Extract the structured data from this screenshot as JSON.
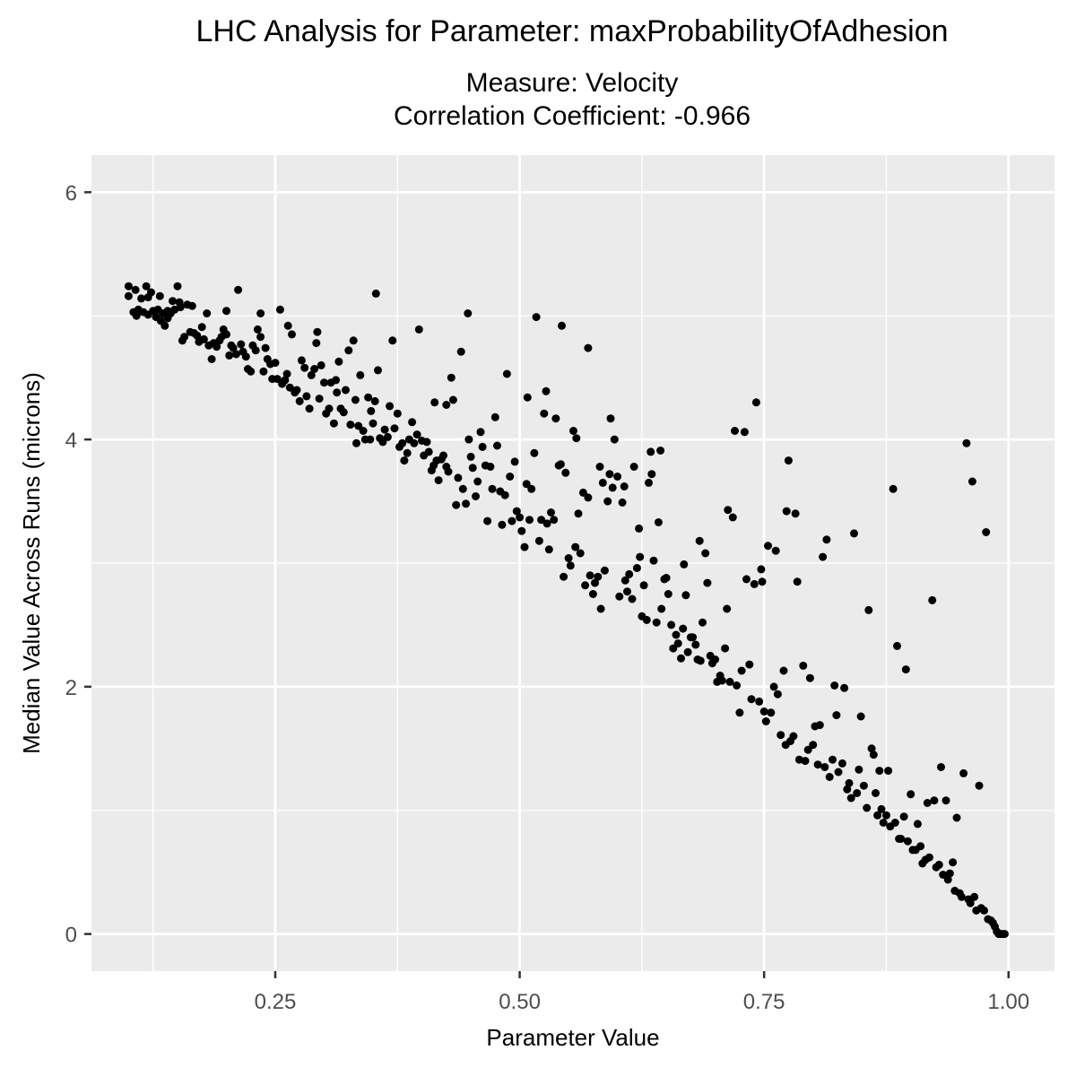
{
  "chart_data": {
    "type": "scatter",
    "title": "LHC Analysis for Parameter: maxProbabilityOfAdhesion",
    "subtitle_lines": [
      "Measure: Velocity",
      "Correlation Coefficient: -0.966"
    ],
    "xlabel": "Parameter Value",
    "ylabel": "Median Value Across Runs (microns)",
    "xlim": [
      0.062,
      1.047
    ],
    "ylim": [
      -0.3,
      6.3
    ],
    "xticks": [
      0.25,
      0.5,
      0.75,
      1.0
    ],
    "xtick_labels": [
      "0.25",
      "0.50",
      "0.75",
      "1.00"
    ],
    "yticks": [
      0,
      2,
      4,
      6
    ],
    "ytick_labels": [
      "0",
      "2",
      "4",
      "6"
    ],
    "grid": true,
    "background": "#ebebeb",
    "point_color": "#000000",
    "points": [
      [
        0.1,
        5.16
      ],
      [
        0.1,
        5.24
      ],
      [
        0.105,
        5.03
      ],
      [
        0.107,
        5.21
      ],
      [
        0.108,
        5.0
      ],
      [
        0.11,
        5.05
      ],
      [
        0.113,
        5.14
      ],
      [
        0.115,
        5.03
      ],
      [
        0.118,
        5.24
      ],
      [
        0.12,
        5.01
      ],
      [
        0.12,
        5.15
      ],
      [
        0.123,
        5.19
      ],
      [
        0.125,
        5.04
      ],
      [
        0.128,
        4.99
      ],
      [
        0.13,
        5.05
      ],
      [
        0.132,
        5.16
      ],
      [
        0.133,
        4.96
      ],
      [
        0.135,
        5.02
      ],
      [
        0.137,
        4.92
      ],
      [
        0.14,
        4.98
      ],
      [
        0.14,
        5.04
      ],
      [
        0.143,
        5.02
      ],
      [
        0.145,
        5.12
      ],
      [
        0.147,
        5.05
      ],
      [
        0.15,
        5.24
      ],
      [
        0.152,
        5.11
      ],
      [
        0.153,
        5.07
      ],
      [
        0.155,
        4.8
      ],
      [
        0.157,
        4.83
      ],
      [
        0.16,
        5.09
      ],
      [
        0.163,
        4.87
      ],
      [
        0.165,
        5.08
      ],
      [
        0.167,
        4.86
      ],
      [
        0.17,
        4.84
      ],
      [
        0.172,
        4.79
      ],
      [
        0.175,
        4.91
      ],
      [
        0.177,
        4.81
      ],
      [
        0.18,
        5.02
      ],
      [
        0.182,
        4.76
      ],
      [
        0.185,
        4.65
      ],
      [
        0.187,
        4.78
      ],
      [
        0.19,
        4.75
      ],
      [
        0.193,
        4.8
      ],
      [
        0.195,
        4.83
      ],
      [
        0.197,
        4.89
      ],
      [
        0.2,
        4.85
      ],
      [
        0.2,
        5.04
      ],
      [
        0.203,
        4.68
      ],
      [
        0.205,
        4.76
      ],
      [
        0.207,
        4.74
      ],
      [
        0.21,
        4.69
      ],
      [
        0.212,
        5.21
      ],
      [
        0.215,
        4.77
      ],
      [
        0.217,
        4.71
      ],
      [
        0.22,
        4.67
      ],
      [
        0.222,
        4.57
      ],
      [
        0.225,
        4.55
      ],
      [
        0.227,
        4.76
      ],
      [
        0.23,
        4.72
      ],
      [
        0.232,
        4.89
      ],
      [
        0.235,
        4.83
      ],
      [
        0.235,
        5.02
      ],
      [
        0.238,
        4.55
      ],
      [
        0.24,
        4.74
      ],
      [
        0.242,
        4.65
      ],
      [
        0.245,
        4.61
      ],
      [
        0.247,
        4.49
      ],
      [
        0.25,
        4.62
      ],
      [
        0.252,
        4.49
      ],
      [
        0.255,
        5.05
      ],
      [
        0.257,
        4.45
      ],
      [
        0.26,
        4.48
      ],
      [
        0.262,
        4.53
      ],
      [
        0.263,
        4.92
      ],
      [
        0.265,
        4.42
      ],
      [
        0.267,
        4.85
      ],
      [
        0.27,
        4.38
      ],
      [
        0.272,
        4.4
      ],
      [
        0.275,
        4.31
      ],
      [
        0.277,
        4.64
      ],
      [
        0.28,
        4.58
      ],
      [
        0.282,
        4.35
      ],
      [
        0.285,
        4.25
      ],
      [
        0.287,
        4.52
      ],
      [
        0.29,
        4.57
      ],
      [
        0.292,
        4.78
      ],
      [
        0.293,
        4.87
      ],
      [
        0.295,
        4.33
      ],
      [
        0.297,
        4.6
      ],
      [
        0.3,
        4.46
      ],
      [
        0.302,
        4.21
      ],
      [
        0.305,
        4.25
      ],
      [
        0.307,
        4.46
      ],
      [
        0.31,
        4.13
      ],
      [
        0.312,
        4.48
      ],
      [
        0.313,
        4.38
      ],
      [
        0.315,
        4.63
      ],
      [
        0.317,
        4.25
      ],
      [
        0.32,
        4.22
      ],
      [
        0.322,
        4.4
      ],
      [
        0.325,
        4.72
      ],
      [
        0.327,
        4.12
      ],
      [
        0.33,
        4.8
      ],
      [
        0.332,
        4.32
      ],
      [
        0.333,
        3.97
      ],
      [
        0.335,
        4.11
      ],
      [
        0.337,
        4.52
      ],
      [
        0.34,
        4.07
      ],
      [
        0.342,
        4.0
      ],
      [
        0.345,
        4.34
      ],
      [
        0.347,
        4.0
      ],
      [
        0.348,
        4.23
      ],
      [
        0.35,
        4.13
      ],
      [
        0.352,
        4.31
      ],
      [
        0.353,
        5.18
      ],
      [
        0.355,
        4.56
      ],
      [
        0.357,
        4.01
      ],
      [
        0.36,
        3.98
      ],
      [
        0.362,
        4.08
      ],
      [
        0.365,
        4.02
      ],
      [
        0.367,
        4.27
      ],
      [
        0.37,
        4.8
      ],
      [
        0.372,
        4.09
      ],
      [
        0.375,
        4.21
      ],
      [
        0.377,
        3.94
      ],
      [
        0.38,
        3.97
      ],
      [
        0.382,
        3.83
      ],
      [
        0.385,
        3.89
      ],
      [
        0.387,
        4.0
      ],
      [
        0.39,
        4.14
      ],
      [
        0.392,
        3.97
      ],
      [
        0.395,
        4.04
      ],
      [
        0.397,
        4.89
      ],
      [
        0.4,
        3.99
      ],
      [
        0.402,
        3.87
      ],
      [
        0.405,
        3.98
      ],
      [
        0.407,
        3.9
      ],
      [
        0.41,
        3.75
      ],
      [
        0.412,
        3.79
      ],
      [
        0.413,
        4.3
      ],
      [
        0.415,
        3.83
      ],
      [
        0.417,
        3.67
      ],
      [
        0.42,
        3.84
      ],
      [
        0.422,
        3.87
      ],
      [
        0.425,
        3.78
      ],
      [
        0.425,
        4.28
      ],
      [
        0.427,
        3.74
      ],
      [
        0.43,
        4.5
      ],
      [
        0.432,
        4.32
      ],
      [
        0.435,
        3.47
      ],
      [
        0.437,
        3.69
      ],
      [
        0.44,
        4.71
      ],
      [
        0.442,
        3.6
      ],
      [
        0.445,
        3.48
      ],
      [
        0.447,
        5.02
      ],
      [
        0.448,
        4.0
      ],
      [
        0.45,
        3.86
      ],
      [
        0.452,
        3.77
      ],
      [
        0.455,
        3.54
      ],
      [
        0.457,
        3.66
      ],
      [
        0.46,
        4.06
      ],
      [
        0.462,
        3.94
      ],
      [
        0.465,
        3.79
      ],
      [
        0.467,
        3.34
      ],
      [
        0.47,
        3.78
      ],
      [
        0.472,
        3.6
      ],
      [
        0.475,
        4.18
      ],
      [
        0.477,
        3.95
      ],
      [
        0.48,
        3.58
      ],
      [
        0.482,
        3.31
      ],
      [
        0.485,
        3.55
      ],
      [
        0.487,
        4.53
      ],
      [
        0.49,
        3.7
      ],
      [
        0.492,
        3.34
      ],
      [
        0.495,
        3.82
      ],
      [
        0.497,
        3.42
      ],
      [
        0.5,
        3.37
      ],
      [
        0.502,
        3.26
      ],
      [
        0.505,
        3.13
      ],
      [
        0.507,
        3.64
      ],
      [
        0.508,
        4.34
      ],
      [
        0.51,
        3.35
      ],
      [
        0.512,
        3.6
      ],
      [
        0.515,
        3.89
      ],
      [
        0.517,
        4.99
      ],
      [
        0.52,
        3.18
      ],
      [
        0.522,
        3.35
      ],
      [
        0.525,
        4.21
      ],
      [
        0.527,
        4.39
      ],
      [
        0.528,
        3.32
      ],
      [
        0.53,
        3.11
      ],
      [
        0.532,
        3.41
      ],
      [
        0.535,
        3.35
      ],
      [
        0.537,
        4.17
      ],
      [
        0.54,
        3.79
      ],
      [
        0.542,
        3.8
      ],
      [
        0.543,
        4.92
      ],
      [
        0.545,
        2.89
      ],
      [
        0.547,
        3.73
      ],
      [
        0.55,
        3.04
      ],
      [
        0.552,
        2.98
      ],
      [
        0.555,
        4.07
      ],
      [
        0.557,
        3.13
      ],
      [
        0.558,
        4.01
      ],
      [
        0.56,
        3.4
      ],
      [
        0.562,
        3.08
      ],
      [
        0.565,
        3.57
      ],
      [
        0.567,
        2.82
      ],
      [
        0.57,
        3.53
      ],
      [
        0.57,
        4.74
      ],
      [
        0.572,
        2.9
      ],
      [
        0.575,
        2.75
      ],
      [
        0.577,
        2.84
      ],
      [
        0.58,
        2.89
      ],
      [
        0.582,
        3.78
      ],
      [
        0.583,
        2.63
      ],
      [
        0.585,
        3.65
      ],
      [
        0.587,
        2.94
      ],
      [
        0.59,
        3.5
      ],
      [
        0.592,
        3.72
      ],
      [
        0.593,
        4.17
      ],
      [
        0.595,
        3.61
      ],
      [
        0.597,
        4.0
      ],
      [
        0.6,
        3.7
      ],
      [
        0.602,
        2.73
      ],
      [
        0.605,
        3.49
      ],
      [
        0.607,
        3.62
      ],
      [
        0.608,
        2.86
      ],
      [
        0.61,
        2.77
      ],
      [
        0.612,
        2.91
      ],
      [
        0.615,
        2.71
      ],
      [
        0.617,
        3.78
      ],
      [
        0.62,
        2.96
      ],
      [
        0.622,
        3.28
      ],
      [
        0.623,
        3.05
      ],
      [
        0.625,
        2.57
      ],
      [
        0.627,
        2.82
      ],
      [
        0.63,
        2.54
      ],
      [
        0.632,
        3.65
      ],
      [
        0.634,
        3.9
      ],
      [
        0.635,
        3.72
      ],
      [
        0.637,
        3.02
      ],
      [
        0.64,
        2.52
      ],
      [
        0.642,
        3.33
      ],
      [
        0.644,
        3.91
      ],
      [
        0.645,
        2.63
      ],
      [
        0.648,
        2.87
      ],
      [
        0.65,
        2.88
      ],
      [
        0.652,
        2.75
      ],
      [
        0.655,
        2.5
      ],
      [
        0.657,
        2.31
      ],
      [
        0.66,
        2.42
      ],
      [
        0.662,
        2.35
      ],
      [
        0.665,
        2.23
      ],
      [
        0.667,
        2.47
      ],
      [
        0.668,
        2.99
      ],
      [
        0.67,
        2.74
      ],
      [
        0.672,
        2.28
      ],
      [
        0.675,
        2.4
      ],
      [
        0.677,
        2.4
      ],
      [
        0.68,
        2.34
      ],
      [
        0.682,
        2.22
      ],
      [
        0.684,
        3.18
      ],
      [
        0.685,
        2.21
      ],
      [
        0.687,
        2.52
      ],
      [
        0.69,
        3.08
      ],
      [
        0.692,
        2.84
      ],
      [
        0.695,
        2.25
      ],
      [
        0.697,
        2.19
      ],
      [
        0.7,
        2.22
      ],
      [
        0.702,
        2.04
      ],
      [
        0.705,
        2.09
      ],
      [
        0.707,
        2.05
      ],
      [
        0.71,
        2.31
      ],
      [
        0.712,
        2.63
      ],
      [
        0.713,
        3.43
      ],
      [
        0.715,
        2.04
      ],
      [
        0.718,
        3.37
      ],
      [
        0.72,
        4.07
      ],
      [
        0.722,
        2.01
      ],
      [
        0.725,
        1.79
      ],
      [
        0.727,
        2.13
      ],
      [
        0.73,
        4.06
      ],
      [
        0.732,
        2.87
      ],
      [
        0.735,
        2.18
      ],
      [
        0.737,
        1.9
      ],
      [
        0.74,
        2.83
      ],
      [
        0.742,
        4.3
      ],
      [
        0.745,
        1.88
      ],
      [
        0.747,
        2.95
      ],
      [
        0.748,
        2.85
      ],
      [
        0.75,
        1.8
      ],
      [
        0.752,
        1.72
      ],
      [
        0.754,
        3.14
      ],
      [
        0.757,
        1.79
      ],
      [
        0.76,
        2.0
      ],
      [
        0.762,
        3.1
      ],
      [
        0.764,
        1.94
      ],
      [
        0.767,
        1.61
      ],
      [
        0.77,
        2.13
      ],
      [
        0.772,
        1.53
      ],
      [
        0.773,
        3.42
      ],
      [
        0.775,
        3.83
      ],
      [
        0.777,
        1.56
      ],
      [
        0.78,
        1.6
      ],
      [
        0.782,
        3.4
      ],
      [
        0.784,
        2.85
      ],
      [
        0.786,
        1.41
      ],
      [
        0.79,
        2.17
      ],
      [
        0.792,
        1.4
      ],
      [
        0.795,
        1.49
      ],
      [
        0.797,
        2.07
      ],
      [
        0.8,
        1.53
      ],
      [
        0.802,
        1.68
      ],
      [
        0.805,
        1.37
      ],
      [
        0.807,
        1.69
      ],
      [
        0.81,
        3.05
      ],
      [
        0.812,
        1.35
      ],
      [
        0.814,
        3.19
      ],
      [
        0.817,
        1.27
      ],
      [
        0.82,
        1.41
      ],
      [
        0.822,
        2.01
      ],
      [
        0.824,
        1.77
      ],
      [
        0.826,
        1.31
      ],
      [
        0.83,
        1.38
      ],
      [
        0.832,
        1.99
      ],
      [
        0.835,
        1.17
      ],
      [
        0.837,
        1.22
      ],
      [
        0.839,
        1.1
      ],
      [
        0.842,
        3.24
      ],
      [
        0.845,
        1.14
      ],
      [
        0.847,
        1.33
      ],
      [
        0.849,
        1.76
      ],
      [
        0.852,
        1.2
      ],
      [
        0.855,
        1.02
      ],
      [
        0.857,
        2.62
      ],
      [
        0.86,
        1.5
      ],
      [
        0.862,
        1.45
      ],
      [
        0.864,
        1.14
      ],
      [
        0.866,
        0.96
      ],
      [
        0.868,
        1.32
      ],
      [
        0.87,
        1.01
      ],
      [
        0.872,
        0.9
      ],
      [
        0.875,
        0.96
      ],
      [
        0.877,
        1.32
      ],
      [
        0.879,
        0.87
      ],
      [
        0.882,
        3.6
      ],
      [
        0.884,
        0.9
      ],
      [
        0.886,
        2.33
      ],
      [
        0.888,
        0.77
      ],
      [
        0.89,
        0.77
      ],
      [
        0.893,
        0.95
      ],
      [
        0.895,
        2.14
      ],
      [
        0.897,
        0.75
      ],
      [
        0.9,
        1.13
      ],
      [
        0.902,
        0.68
      ],
      [
        0.905,
        0.68
      ],
      [
        0.907,
        0.89
      ],
      [
        0.91,
        0.71
      ],
      [
        0.912,
        0.57
      ],
      [
        0.915,
        0.6
      ],
      [
        0.917,
        1.06
      ],
      [
        0.919,
        0.62
      ],
      [
        0.922,
        2.7
      ],
      [
        0.924,
        1.08
      ],
      [
        0.926,
        0.54
      ],
      [
        0.929,
        0.56
      ],
      [
        0.931,
        1.35
      ],
      [
        0.933,
        0.48
      ],
      [
        0.936,
        1.08
      ],
      [
        0.938,
        0.44
      ],
      [
        0.94,
        0.49
      ],
      [
        0.943,
        0.58
      ],
      [
        0.945,
        0.35
      ],
      [
        0.947,
        0.94
      ],
      [
        0.95,
        0.33
      ],
      [
        0.952,
        0.3
      ],
      [
        0.954,
        1.3
      ],
      [
        0.957,
        3.97
      ],
      [
        0.959,
        0.28
      ],
      [
        0.961,
        0.25
      ],
      [
        0.963,
        3.66
      ],
      [
        0.965,
        0.3
      ],
      [
        0.967,
        0.19
      ],
      [
        0.97,
        1.2
      ],
      [
        0.972,
        0.21
      ],
      [
        0.975,
        0.19
      ],
      [
        0.977,
        3.25
      ],
      [
        0.979,
        0.12
      ],
      [
        0.982,
        0.11
      ],
      [
        0.984,
        0.09
      ],
      [
        0.986,
        0.06
      ],
      [
        0.988,
        0.02
      ],
      [
        0.99,
        0.0
      ],
      [
        0.992,
        0.0
      ],
      [
        0.994,
        0.0
      ],
      [
        0.996,
        0.0
      ]
    ]
  }
}
